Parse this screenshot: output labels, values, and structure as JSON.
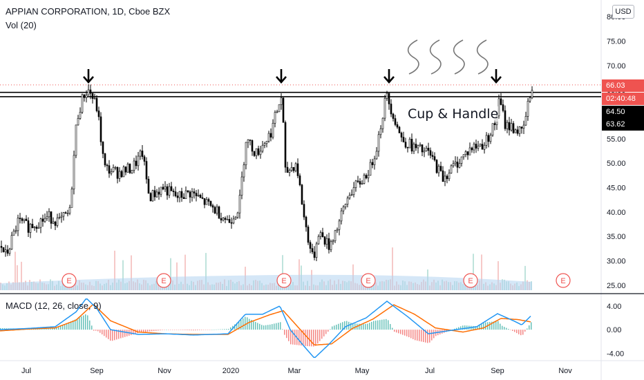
{
  "header": {
    "title": "APPIAN CORPORATION, 1D, Cboe BZX",
    "vol_label": "Vol (20)",
    "currency": "USD",
    "macd_label": "MACD (12, 26, close, 9)"
  },
  "tags": {
    "last_price": "66.03",
    "countdown": "02:40:48",
    "line_upper": "64.50",
    "line_lower": "63.62"
  },
  "annotation": "Cup & Handle",
  "colors": {
    "up": "#26a69a",
    "down": "#ef5350",
    "candle": "#000000",
    "macd": "#2196f3",
    "signal": "#ff6d00",
    "volume": "#b3d4f0"
  },
  "chart_data": [
    {
      "type": "candlestick",
      "title": "APPIAN CORPORATION, 1D, Cboe BZX",
      "ylim": [
        24,
        82
      ],
      "price_ticks": [
        "25.00",
        "30.00",
        "35.00",
        "40.00",
        "45.00",
        "50.00",
        "55.00",
        "60.00",
        "65.00",
        "70.00",
        "75.00",
        "80.00"
      ],
      "x_ticks": [
        "Jul",
        "Sep",
        "Nov",
        "2020",
        "Mar",
        "May",
        "Jul",
        "Sep",
        "Nov"
      ],
      "close_path": [
        {
          "t": 0,
          "v": 33
        },
        {
          "t": 8,
          "v": 31
        },
        {
          "t": 25,
          "v": 38
        },
        {
          "t": 40,
          "v": 37
        },
        {
          "t": 55,
          "v": 38
        },
        {
          "t": 70,
          "v": 39
        },
        {
          "t": 85,
          "v": 38
        },
        {
          "t": 100,
          "v": 40
        },
        {
          "t": 110,
          "v": 59
        },
        {
          "t": 120,
          "v": 64
        },
        {
          "t": 128,
          "v": 65
        },
        {
          "t": 140,
          "v": 61
        },
        {
          "t": 150,
          "v": 49
        },
        {
          "t": 170,
          "v": 48
        },
        {
          "t": 190,
          "v": 49
        },
        {
          "t": 205,
          "v": 52
        },
        {
          "t": 215,
          "v": 43
        },
        {
          "t": 235,
          "v": 45
        },
        {
          "t": 255,
          "v": 43
        },
        {
          "t": 275,
          "v": 44
        },
        {
          "t": 295,
          "v": 42
        },
        {
          "t": 315,
          "v": 40
        },
        {
          "t": 330,
          "v": 38
        },
        {
          "t": 345,
          "v": 41
        },
        {
          "t": 355,
          "v": 55
        },
        {
          "t": 370,
          "v": 52
        },
        {
          "t": 390,
          "v": 56
        },
        {
          "t": 407,
          "v": 64
        },
        {
          "t": 412,
          "v": 48
        },
        {
          "t": 428,
          "v": 50
        },
        {
          "t": 440,
          "v": 38
        },
        {
          "t": 452,
          "v": 30
        },
        {
          "t": 460,
          "v": 36
        },
        {
          "t": 475,
          "v": 33
        },
        {
          "t": 490,
          "v": 38
        },
        {
          "t": 505,
          "v": 44
        },
        {
          "t": 520,
          "v": 46
        },
        {
          "t": 535,
          "v": 49
        },
        {
          "t": 545,
          "v": 54
        },
        {
          "t": 558,
          "v": 64
        },
        {
          "t": 568,
          "v": 60
        },
        {
          "t": 580,
          "v": 55
        },
        {
          "t": 600,
          "v": 53
        },
        {
          "t": 620,
          "v": 52
        },
        {
          "t": 640,
          "v": 47
        },
        {
          "t": 660,
          "v": 50
        },
        {
          "t": 680,
          "v": 53
        },
        {
          "t": 700,
          "v": 54
        },
        {
          "t": 715,
          "v": 58
        },
        {
          "t": 722,
          "v": 63
        },
        {
          "t": 730,
          "v": 58
        },
        {
          "t": 745,
          "v": 57
        },
        {
          "t": 755,
          "v": 56
        },
        {
          "t": 762,
          "v": 61
        },
        {
          "t": 769,
          "v": 66
        }
      ],
      "horizontal_levels": [
        64.5,
        63.62
      ],
      "last_price_line": 66.03,
      "arrows_at_index": [
        128,
        407,
        563,
        718
      ],
      "earnings_markers": {
        "label": "E",
        "at_index": [
          100,
          237,
          411,
          533,
          681,
          815
        ]
      }
    },
    {
      "type": "line",
      "title": "MACD (12, 26, close, 9)",
      "ylim": [
        -5,
        5.5
      ],
      "y_ticks": [
        "4.00",
        "0.00",
        "-4.00"
      ],
      "series": [
        {
          "name": "MACD",
          "values": [
            {
              "t": 0,
              "v": 0
            },
            {
              "t": 40,
              "v": 0.2
            },
            {
              "t": 80,
              "v": 0.5
            },
            {
              "t": 110,
              "v": 3
            },
            {
              "t": 125,
              "v": 5.3
            },
            {
              "t": 140,
              "v": 3.6
            },
            {
              "t": 160,
              "v": 0
            },
            {
              "t": 200,
              "v": -0.8
            },
            {
              "t": 240,
              "v": -0.7
            },
            {
              "t": 280,
              "v": -0.9
            },
            {
              "t": 330,
              "v": -0.7
            },
            {
              "t": 355,
              "v": 2.6
            },
            {
              "t": 380,
              "v": 2.6
            },
            {
              "t": 405,
              "v": 4
            },
            {
              "t": 420,
              "v": 0
            },
            {
              "t": 440,
              "v": -2.8
            },
            {
              "t": 455,
              "v": -4.8
            },
            {
              "t": 475,
              "v": -2.6
            },
            {
              "t": 500,
              "v": 0.5
            },
            {
              "t": 530,
              "v": 2
            },
            {
              "t": 560,
              "v": 4.8
            },
            {
              "t": 590,
              "v": 2.2
            },
            {
              "t": 620,
              "v": -0.7
            },
            {
              "t": 660,
              "v": 0
            },
            {
              "t": 690,
              "v": 0.5
            },
            {
              "t": 720,
              "v": 2.7
            },
            {
              "t": 745,
              "v": 1.4
            },
            {
              "t": 755,
              "v": 0.8
            },
            {
              "t": 769,
              "v": 2.4
            }
          ]
        },
        {
          "name": "Signal",
          "values": [
            {
              "t": 0,
              "v": -0.2
            },
            {
              "t": 40,
              "v": 0.1
            },
            {
              "t": 80,
              "v": 0.3
            },
            {
              "t": 110,
              "v": 1.6
            },
            {
              "t": 135,
              "v": 4.3
            },
            {
              "t": 160,
              "v": 1.5
            },
            {
              "t": 200,
              "v": -0.4
            },
            {
              "t": 240,
              "v": -0.7
            },
            {
              "t": 280,
              "v": -0.8
            },
            {
              "t": 330,
              "v": -0.8
            },
            {
              "t": 360,
              "v": 1.2
            },
            {
              "t": 390,
              "v": 2.5
            },
            {
              "t": 410,
              "v": 3.2
            },
            {
              "t": 430,
              "v": 0.6
            },
            {
              "t": 455,
              "v": -2.6
            },
            {
              "t": 480,
              "v": -2.4
            },
            {
              "t": 510,
              "v": 0.2
            },
            {
              "t": 540,
              "v": 1.8
            },
            {
              "t": 570,
              "v": 4.2
            },
            {
              "t": 600,
              "v": 2.6
            },
            {
              "t": 630,
              "v": 0.3
            },
            {
              "t": 670,
              "v": -0.4
            },
            {
              "t": 700,
              "v": 0.3
            },
            {
              "t": 725,
              "v": 1.9
            },
            {
              "t": 750,
              "v": 1.7
            },
            {
              "t": 769,
              "v": 1.3
            }
          ]
        }
      ]
    }
  ]
}
